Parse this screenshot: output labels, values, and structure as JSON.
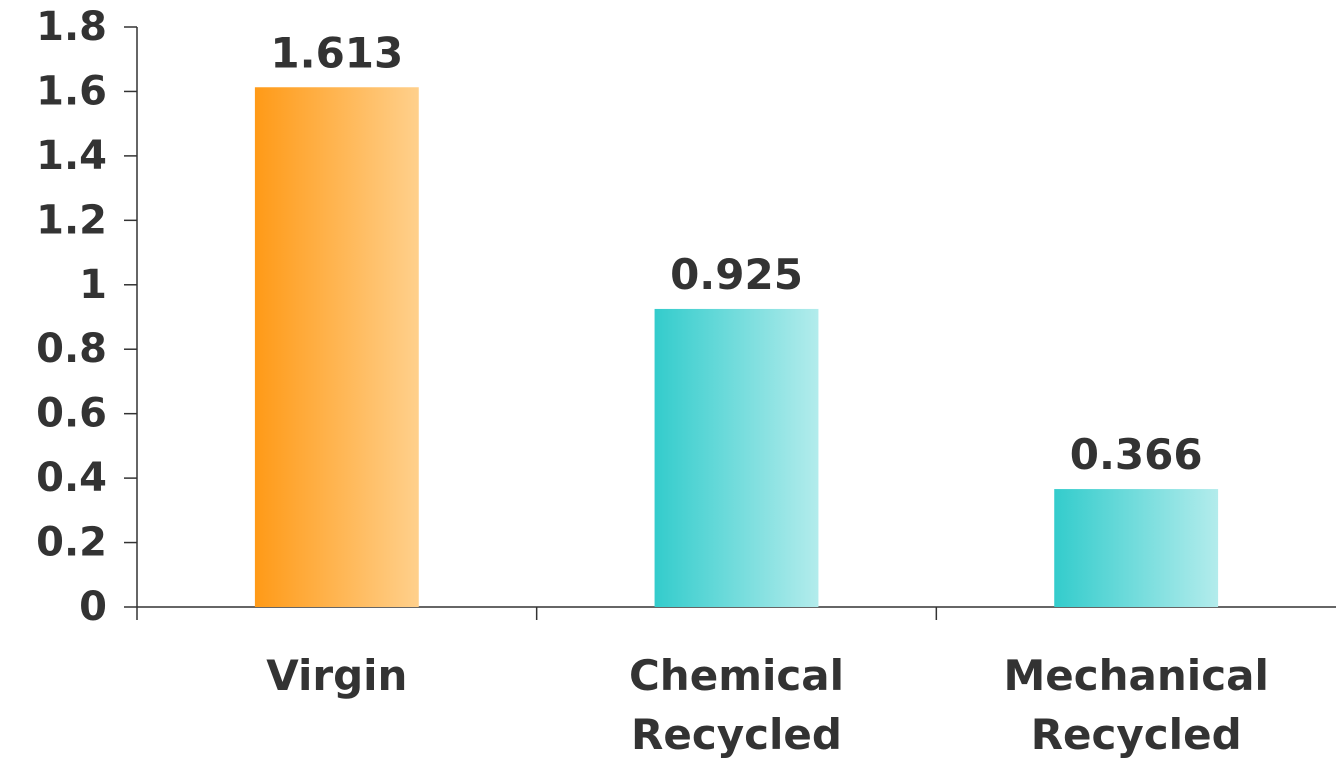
{
  "chart_data": {
    "type": "bar",
    "title": "",
    "xlabel": "",
    "ylabel": "",
    "categories": [
      [
        "Virgin"
      ],
      [
        "Chemical",
        "Recycled"
      ],
      [
        "Mechanical",
        "Recycled"
      ]
    ],
    "values": [
      1.613,
      0.925,
      0.366
    ],
    "data_labels": [
      "1.613",
      "0.925",
      "0.366"
    ],
    "ylim": [
      0,
      1.8
    ],
    "yticks": [
      0,
      0.2,
      0.4,
      0.6,
      0.8,
      1,
      1.2,
      1.4,
      1.6,
      1.8
    ],
    "ytick_labels": [
      "0",
      "0.2",
      "0.4",
      "0.6",
      "0.8",
      "1",
      "1.2",
      "1.4",
      "1.6",
      "1.8"
    ],
    "grid": false,
    "legend": "none",
    "bar_colors": [
      {
        "from": "#ff9a17",
        "to": "#ffd08c"
      },
      {
        "from": "#33cccc",
        "to": "#b3ecec"
      },
      {
        "from": "#33cccc",
        "to": "#b3ecec"
      }
    ],
    "text_color": "#333333"
  }
}
